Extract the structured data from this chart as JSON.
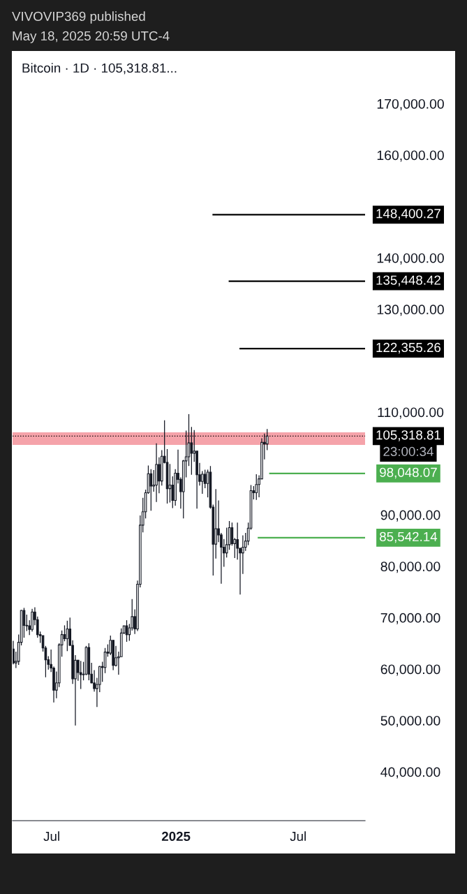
{
  "chart_data": {
    "type": "candlestick",
    "title": "VIVOVIP369 published",
    "subtitle": "May 18, 2025 20:59 UTC-4",
    "annotations": [
      "Bitcoin · 1D · 105,318.81...",
      "23:00:34"
    ],
    "xlim": [
      "2024-05-04",
      "2025-10-08"
    ],
    "xticks": [
      {
        "value": "2024-07-01",
        "label": "Jul"
      },
      {
        "value": "2025-01-01",
        "label": "2025"
      },
      {
        "value": "2025-07-01",
        "label": "Jul"
      }
    ],
    "ylim": [
      30500,
      180250
    ],
    "yticks": [
      {
        "value": 40000,
        "label": "40,000.00"
      },
      {
        "value": 50000,
        "label": "50,000.00"
      },
      {
        "value": 60000,
        "label": "60,000.00"
      },
      {
        "value": 70000,
        "label": "70,000.00"
      },
      {
        "value": 80000,
        "label": "80,000.00"
      },
      {
        "value": 90000,
        "label": "90,000.00"
      },
      {
        "value": 110000,
        "label": "110,000.00"
      },
      {
        "value": 130000,
        "label": "130,000.00"
      },
      {
        "value": 140000,
        "label": "140,000.00"
      },
      {
        "value": 160000,
        "label": "160,000.00"
      },
      {
        "value": 170000,
        "label": "170,000.00"
      }
    ],
    "grid": false,
    "color": "#131722",
    "ref_lines": [
      {
        "axis": "y",
        "value": 105318.81,
        "label": "105,318.81",
        "color": "#000000",
        "line_style": "dotted"
      }
    ],
    "bands": [
      {
        "axis": "y",
        "from": 103600,
        "to": 106050,
        "color": "#f5a3aa"
      }
    ],
    "x": [
      "2024-05-05",
      "2024-05-09",
      "2024-05-13",
      "2024-05-17",
      "2024-05-21",
      "2024-05-25",
      "2024-05-29",
      "2024-06-02",
      "2024-06-06",
      "2024-06-10",
      "2024-06-14",
      "2024-06-18",
      "2024-06-22",
      "2024-06-26",
      "2024-06-30",
      "2024-07-04",
      "2024-07-08",
      "2024-07-12",
      "2024-07-16",
      "2024-07-20",
      "2024-07-24",
      "2024-07-28",
      "2024-08-01",
      "2024-08-05",
      "2024-08-09",
      "2024-08-13",
      "2024-08-17",
      "2024-08-21",
      "2024-08-25",
      "2024-08-29",
      "2024-09-02",
      "2024-09-06",
      "2024-09-10",
      "2024-09-14",
      "2024-09-18",
      "2024-09-22",
      "2024-09-26",
      "2024-09-30",
      "2024-10-04",
      "2024-10-08",
      "2024-10-12",
      "2024-10-16",
      "2024-10-20",
      "2024-10-24",
      "2024-10-28",
      "2024-11-01",
      "2024-11-05",
      "2024-11-09",
      "2024-11-13",
      "2024-11-17",
      "2024-11-21",
      "2024-11-25",
      "2024-11-29",
      "2024-12-03",
      "2024-12-07",
      "2024-12-11",
      "2024-12-15",
      "2024-12-19",
      "2024-12-23",
      "2024-12-27",
      "2024-12-31",
      "2025-01-04",
      "2025-01-08",
      "2025-01-12",
      "2025-01-16",
      "2025-01-20",
      "2025-01-24",
      "2025-01-28",
      "2025-02-01",
      "2025-02-05",
      "2025-02-09",
      "2025-02-13",
      "2025-02-17",
      "2025-02-21",
      "2025-02-25",
      "2025-03-01",
      "2025-03-05",
      "2025-03-09",
      "2025-03-13",
      "2025-03-17",
      "2025-03-21",
      "2025-03-25",
      "2025-03-29",
      "2025-04-02",
      "2025-04-06",
      "2025-04-10",
      "2025-04-14",
      "2025-04-18",
      "2025-04-22",
      "2025-04-26",
      "2025-04-30",
      "2025-05-04",
      "2025-05-08",
      "2025-05-12",
      "2025-05-16"
    ],
    "ohlc": [
      [
        63900,
        65500,
        60900,
        61200
      ],
      [
        61200,
        63400,
        60200,
        61500
      ],
      [
        61500,
        66700,
        60800,
        65200
      ],
      [
        65200,
        71500,
        64600,
        71400
      ],
      [
        71400,
        71900,
        66100,
        68500
      ],
      [
        68500,
        70600,
        67400,
        68400
      ],
      [
        68400,
        69500,
        66600,
        67700
      ],
      [
        67700,
        71700,
        67300,
        71100
      ],
      [
        71100,
        72000,
        68500,
        69600
      ],
      [
        69600,
        70200,
        66100,
        66700
      ],
      [
        66700,
        67300,
        65100,
        66500
      ],
      [
        66500,
        66500,
        63400,
        64100
      ],
      [
        64100,
        64500,
        58400,
        61800
      ],
      [
        61800,
        62500,
        59900,
        60900
      ],
      [
        60900,
        63800,
        59400,
        60200
      ],
      [
        60200,
        60500,
        53500,
        55900
      ],
      [
        55900,
        59500,
        54300,
        57300
      ],
      [
        57300,
        65000,
        56500,
        64700
      ],
      [
        64700,
        67500,
        62400,
        66700
      ],
      [
        66700,
        68500,
        65400,
        65900
      ],
      [
        65900,
        69400,
        63500,
        67800
      ],
      [
        67800,
        70000,
        64500,
        64600
      ],
      [
        64600,
        65600,
        57100,
        58100
      ],
      [
        58100,
        62700,
        49000,
        61700
      ],
      [
        61700,
        61800,
        57700,
        59300
      ],
      [
        59300,
        61600,
        56100,
        58900
      ],
      [
        58900,
        61400,
        57800,
        59000
      ],
      [
        59000,
        64500,
        58800,
        64200
      ],
      [
        64200,
        65000,
        57800,
        59000
      ],
      [
        59000,
        61200,
        57200,
        57300
      ],
      [
        57300,
        59800,
        55600,
        56200
      ],
      [
        56200,
        58300,
        52600,
        57000
      ],
      [
        57000,
        60600,
        55500,
        60500
      ],
      [
        60500,
        61400,
        57500,
        60300
      ],
      [
        60300,
        64100,
        59200,
        63300
      ],
      [
        63300,
        64800,
        62400,
        63100
      ],
      [
        63100,
        66500,
        62700,
        65600
      ],
      [
        65600,
        65600,
        59800,
        60700
      ],
      [
        60700,
        64500,
        60500,
        62200
      ],
      [
        62200,
        63400,
        58900,
        62400
      ],
      [
        62400,
        67900,
        62400,
        67000
      ],
      [
        67000,
        68400,
        66800,
        68400
      ],
      [
        68400,
        69500,
        65300,
        66700
      ],
      [
        66700,
        68800,
        65500,
        68000
      ],
      [
        68000,
        73600,
        67500,
        70200
      ],
      [
        70200,
        71600,
        66800,
        67800
      ],
      [
        67800,
        77200,
        67400,
        76500
      ],
      [
        76500,
        89900,
        75900,
        88000
      ],
      [
        88000,
        93300,
        86600,
        90600
      ],
      [
        90600,
        94900,
        89300,
        94300
      ],
      [
        94300,
        99600,
        94100,
        98000
      ],
      [
        98000,
        98900,
        90800,
        95600
      ],
      [
        95600,
        98700,
        94500,
        95800
      ],
      [
        95800,
        103900,
        92500,
        99800
      ],
      [
        99800,
        101200,
        94200,
        96600
      ],
      [
        96600,
        102600,
        95700,
        101400
      ],
      [
        101400,
        108400,
        100000,
        100200
      ],
      [
        100200,
        102800,
        92200,
        95100
      ],
      [
        95100,
        99900,
        92400,
        95800
      ],
      [
        95800,
        97500,
        91300,
        92800
      ],
      [
        92800,
        98900,
        91800,
        98100
      ],
      [
        98100,
        102700,
        96100,
        96900
      ],
      [
        96900,
        97300,
        91200,
        94500
      ],
      [
        94500,
        100700,
        89300,
        100500
      ],
      [
        100500,
        106400,
        97300,
        101300
      ],
      [
        101300,
        109600,
        99500,
        104000
      ],
      [
        104000,
        107100,
        97800,
        102000
      ],
      [
        102000,
        106500,
        100300,
        102400
      ],
      [
        102400,
        102400,
        91200,
        97800
      ],
      [
        97800,
        100100,
        95700,
        96500
      ],
      [
        96500,
        98500,
        94100,
        97900
      ],
      [
        97900,
        98800,
        95200,
        96100
      ],
      [
        96100,
        98800,
        93400,
        98300
      ],
      [
        98300,
        99500,
        91200,
        91500
      ],
      [
        91500,
        92000,
        78200,
        84300
      ],
      [
        84300,
        95000,
        81500,
        87300
      ],
      [
        87300,
        92800,
        84700,
        86100
      ],
      [
        86100,
        86500,
        76600,
        83700
      ],
      [
        83700,
        85300,
        79900,
        82600
      ],
      [
        82600,
        87500,
        81700,
        84200
      ],
      [
        84200,
        88800,
        83200,
        87500
      ],
      [
        87500,
        88500,
        84000,
        84400
      ],
      [
        84400,
        85500,
        81600,
        85200
      ],
      [
        85200,
        88500,
        81300,
        83500
      ],
      [
        83500,
        83600,
        74500,
        82600
      ],
      [
        82600,
        86000,
        78500,
        83700
      ],
      [
        83700,
        86500,
        83000,
        84900
      ],
      [
        84900,
        88500,
        84100,
        87400
      ],
      [
        87400,
        95800,
        87100,
        94700
      ],
      [
        94700,
        95600,
        93000,
        94300
      ],
      [
        94300,
        97900,
        92900,
        95900
      ],
      [
        95900,
        97700,
        93400,
        97000
      ],
      [
        97000,
        104900,
        96900,
        104100
      ],
      [
        104100,
        105800,
        100800,
        103800
      ],
      [
        103800,
        106700,
        102600,
        105318.81
      ]
    ],
    "series": [
      {
        "type": "line",
        "color": "#000000",
        "x": [
          "2025-02-24",
          "2025-10-08"
        ],
        "values": [
          148400.27,
          148400.27
        ],
        "value_labels": [
          null,
          "148,400.27"
        ]
      },
      {
        "type": "line",
        "color": "#000000",
        "x": [
          "2025-03-20",
          "2025-10-08"
        ],
        "values": [
          135448.42,
          135448.42
        ],
        "value_labels": [
          null,
          "135,448.42"
        ]
      },
      {
        "type": "line",
        "color": "#000000",
        "x": [
          "2025-04-05",
          "2025-10-08"
        ],
        "values": [
          122355.26,
          122355.26
        ],
        "value_labels": [
          null,
          "122,355.26"
        ]
      },
      {
        "type": "line",
        "color": "#4caf50",
        "x": [
          "2025-05-19",
          "2025-10-08"
        ],
        "values": [
          98048.07,
          98048.07
        ],
        "value_labels": [
          null,
          "98,048.07"
        ]
      },
      {
        "type": "line",
        "color": "#4caf50",
        "x": [
          "2025-05-02",
          "2025-10-08"
        ],
        "values": [
          85542.14,
          85542.14
        ],
        "value_labels": [
          null,
          "85,542.14"
        ]
      }
    ]
  }
}
